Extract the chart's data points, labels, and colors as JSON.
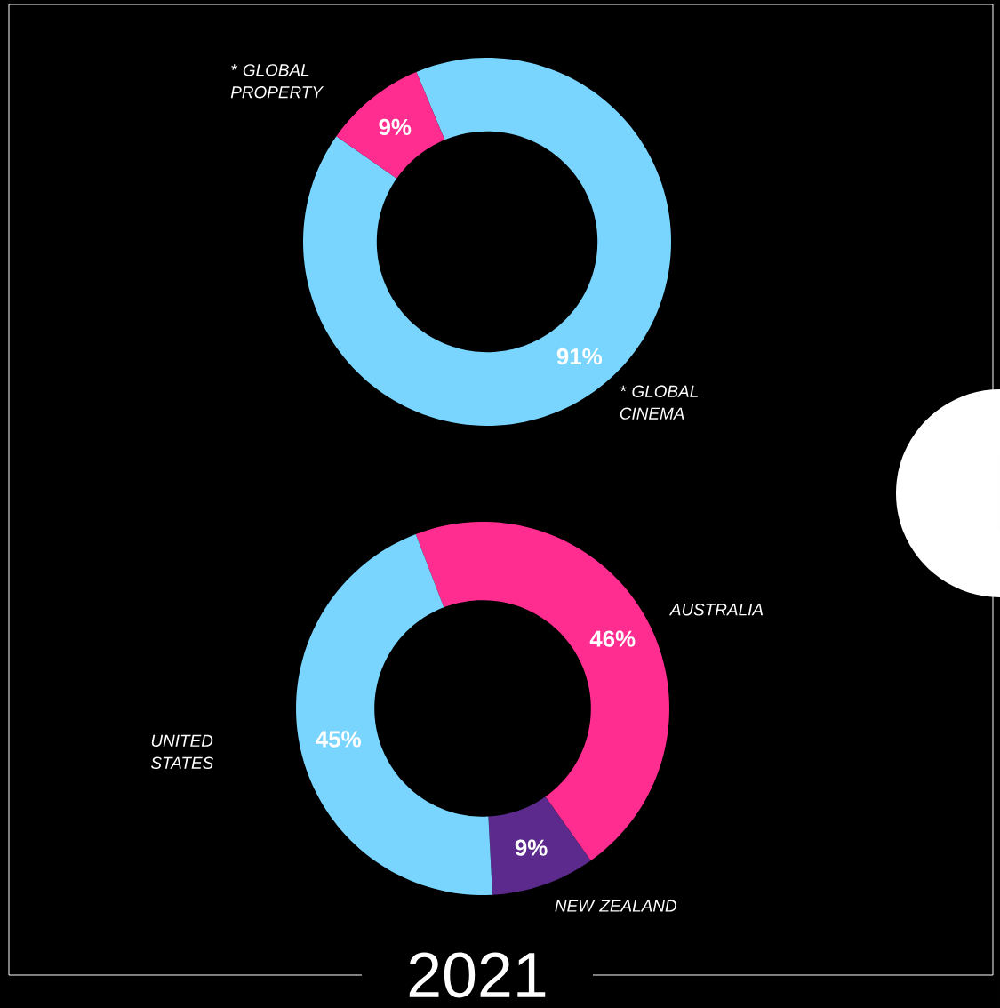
{
  "chart_data": [
    {
      "type": "donut",
      "categories": [
        "* GLOBAL CINEMA",
        "* GLOBAL PROPERTY"
      ],
      "values": [
        91,
        9
      ],
      "colors": [
        "#79d5fd",
        "#ff2d8f"
      ],
      "value_labels": [
        "91%",
        "9%"
      ]
    },
    {
      "type": "donut",
      "title": "2021",
      "categories": [
        "AUSTRALIA",
        "NEW ZEALAND",
        "UNITED STATES"
      ],
      "values": [
        46,
        9,
        45
      ],
      "colors": [
        "#ff2d8f",
        "#5b2a8c",
        "#79d5fd"
      ],
      "value_labels": [
        "46%",
        "9%",
        "45%"
      ]
    }
  ]
}
